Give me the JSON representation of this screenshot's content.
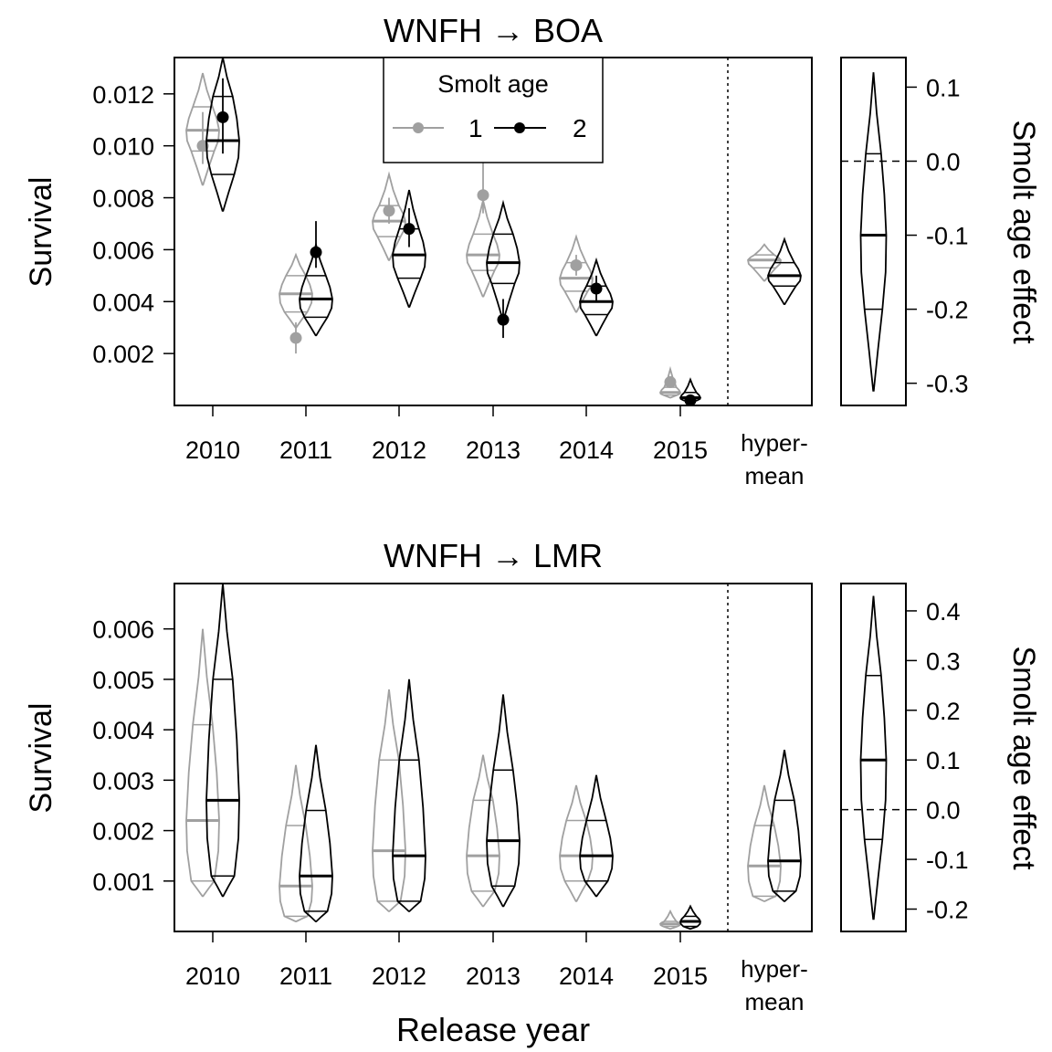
{
  "shared": {
    "xlabel": "Release year",
    "ylabel": "Survival",
    "side_ylabel": "Smolt age effect",
    "year_labels": [
      "2010",
      "2011",
      "2012",
      "2013",
      "2014",
      "2015"
    ],
    "hyper_label_line1": "hyper-",
    "hyper_label_line2": "mean",
    "legend": {
      "title": "Smolt age",
      "entries": [
        {
          "label": "1",
          "color": "#a0a0a0"
        },
        {
          "label": "2",
          "color": "#000000"
        }
      ]
    },
    "colors": {
      "age1": "#a0a0a0",
      "age2": "#000000"
    }
  },
  "chart_data": [
    {
      "type": "violin",
      "title": "WNFH → BOA",
      "ylabel": "Survival",
      "yticks": [
        "0.002",
        "0.004",
        "0.006",
        "0.008",
        "0.010",
        "0.012"
      ],
      "ylim": [
        0.0,
        0.0134
      ],
      "legend_position": "top-center",
      "categories": [
        "2010",
        "2011",
        "2012",
        "2013",
        "2014",
        "2015",
        "hyper-mean"
      ],
      "series": [
        {
          "name": "1",
          "groups": [
            {
              "min": 0.0085,
              "q25": 0.0098,
              "median": 0.0106,
              "q75": 0.0115,
              "max": 0.0128,
              "point": 0.01,
              "point_lo": 0.0093,
              "point_hi": 0.0113
            },
            {
              "min": 0.003,
              "q25": 0.0036,
              "median": 0.0043,
              "q75": 0.005,
              "max": 0.0058,
              "point": 0.0026,
              "point_lo": 0.002,
              "point_hi": 0.0032
            },
            {
              "min": 0.0056,
              "q25": 0.0065,
              "median": 0.0071,
              "q75": 0.0077,
              "max": 0.0089,
              "point": 0.0075,
              "point_lo": 0.007,
              "point_hi": 0.008
            },
            {
              "min": 0.0042,
              "q25": 0.0052,
              "median": 0.0058,
              "q75": 0.0066,
              "max": 0.0079,
              "point": 0.0081,
              "point_lo": 0.0074,
              "point_hi": 0.0097
            },
            {
              "min": 0.0036,
              "q25": 0.0044,
              "median": 0.0049,
              "q75": 0.0055,
              "max": 0.0065,
              "point": 0.0054,
              "point_lo": 0.005,
              "point_hi": 0.0058
            },
            {
              "min": 0.0003,
              "q25": 0.0004,
              "median": 0.0005,
              "q75": 0.0007,
              "max": 0.0014,
              "point": 0.0009,
              "point_lo": 0.0007,
              "point_hi": 0.0011
            },
            {
              "min": 0.0048,
              "q25": 0.0053,
              "median": 0.0056,
              "q75": 0.0058,
              "max": 0.0062
            }
          ]
        },
        {
          "name": "2",
          "groups": [
            {
              "min": 0.0075,
              "q25": 0.0089,
              "median": 0.0102,
              "q75": 0.0119,
              "max": 0.0134,
              "point": 0.0111,
              "point_lo": 0.0097,
              "point_hi": 0.0126
            },
            {
              "min": 0.0027,
              "q25": 0.0034,
              "median": 0.0041,
              "q75": 0.005,
              "max": 0.0062,
              "point": 0.0059,
              "point_lo": 0.0053,
              "point_hi": 0.0071
            },
            {
              "min": 0.0038,
              "q25": 0.0049,
              "median": 0.0058,
              "q75": 0.0068,
              "max": 0.0083,
              "point": 0.0068,
              "point_lo": 0.0061,
              "point_hi": 0.0076
            },
            {
              "min": 0.0033,
              "q25": 0.0047,
              "median": 0.0055,
              "q75": 0.0066,
              "max": 0.0078,
              "point": 0.0033,
              "point_lo": 0.0026,
              "point_hi": 0.0041
            },
            {
              "min": 0.0027,
              "q25": 0.0035,
              "median": 0.004,
              "q75": 0.0046,
              "max": 0.0056,
              "point": 0.0045,
              "point_lo": 0.004,
              "point_hi": 0.005
            },
            {
              "min": 0.0001,
              "q25": 0.0002,
              "median": 0.0003,
              "q75": 0.0005,
              "max": 0.001,
              "point": 0.0002,
              "point_lo": 0.0001,
              "point_hi": 0.0004
            },
            {
              "min": 0.0039,
              "q25": 0.0046,
              "median": 0.005,
              "q75": 0.0055,
              "max": 0.0064
            }
          ]
        }
      ],
      "age_effect": {
        "yticks": [
          "0.1",
          "0.0",
          "-0.1",
          "-0.2",
          "-0.3"
        ],
        "ylim": [
          -0.33,
          0.14
        ],
        "min": -0.31,
        "q25": -0.2,
        "median": -0.1,
        "q75": 0.01,
        "max": 0.12,
        "ref": 0.0
      }
    },
    {
      "type": "violin",
      "title": "WNFH → LMR",
      "ylabel": "Survival",
      "yticks": [
        "0.001",
        "0.002",
        "0.003",
        "0.004",
        "0.005",
        "0.006"
      ],
      "ylim": [
        0.0,
        0.0069
      ],
      "categories": [
        "2010",
        "2011",
        "2012",
        "2013",
        "2014",
        "2015",
        "hyper-mean"
      ],
      "series": [
        {
          "name": "1",
          "groups": [
            {
              "min": 0.0007,
              "q25": 0.001,
              "median": 0.0022,
              "q75": 0.0041,
              "max": 0.006
            },
            {
              "min": 0.0002,
              "q25": 0.0003,
              "median": 0.0009,
              "q75": 0.0021,
              "max": 0.0033
            },
            {
              "min": 0.0004,
              "q25": 0.0006,
              "median": 0.0016,
              "q75": 0.0034,
              "max": 0.0048
            },
            {
              "min": 0.0005,
              "q25": 0.0008,
              "median": 0.0015,
              "q75": 0.0026,
              "max": 0.0035
            },
            {
              "min": 0.0006,
              "q25": 0.001,
              "median": 0.0015,
              "q75": 0.0022,
              "max": 0.0029
            },
            {
              "min": 5e-05,
              "q25": 0.0001,
              "median": 0.00015,
              "q75": 0.0002,
              "max": 0.0004
            },
            {
              "min": 0.0006,
              "q25": 0.0007,
              "median": 0.0013,
              "q75": 0.0021,
              "max": 0.0029
            }
          ]
        },
        {
          "name": "2",
          "groups": [
            {
              "min": 0.0007,
              "q25": 0.0011,
              "median": 0.0026,
              "q75": 0.005,
              "max": 0.0069
            },
            {
              "min": 0.0002,
              "q25": 0.0004,
              "median": 0.0011,
              "q75": 0.0024,
              "max": 0.0037
            },
            {
              "min": 0.0004,
              "q25": 0.0006,
              "median": 0.0015,
              "q75": 0.0034,
              "max": 0.005
            },
            {
              "min": 0.0005,
              "q25": 0.0009,
              "median": 0.0018,
              "q75": 0.0032,
              "max": 0.0047
            },
            {
              "min": 0.0007,
              "q25": 0.001,
              "median": 0.0015,
              "q75": 0.0022,
              "max": 0.0031
            },
            {
              "min": 5e-05,
              "q25": 0.0001,
              "median": 0.0002,
              "q75": 0.0003,
              "max": 0.0005
            },
            {
              "min": 0.0006,
              "q25": 0.0008,
              "median": 0.0014,
              "q75": 0.0026,
              "max": 0.0036
            }
          ]
        }
      ],
      "age_effect": {
        "yticks": [
          "0.4",
          "0.3",
          "0.2",
          "0.1",
          "0.0",
          "-0.1",
          "-0.2"
        ],
        "ylim": [
          -0.245,
          0.455
        ],
        "min": -0.22,
        "q25": -0.06,
        "median": 0.1,
        "q75": 0.27,
        "max": 0.43,
        "ref": 0.0
      }
    }
  ]
}
